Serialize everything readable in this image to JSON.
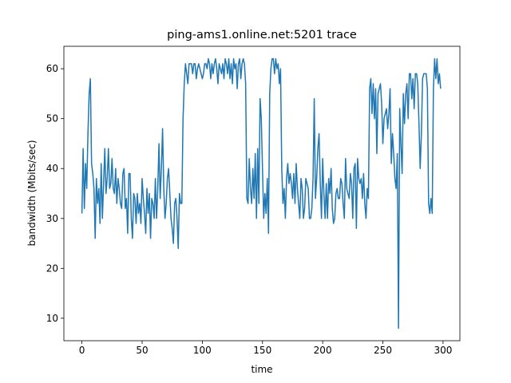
{
  "chart_data": {
    "type": "line",
    "title": "ping-ams1.online.net:5201 trace",
    "x_label": "time",
    "y_label": "bandwidth (Mbits/sec)",
    "x": [
      0,
      1,
      2,
      3,
      4,
      5,
      6,
      7,
      8,
      9,
      10,
      11,
      12,
      13,
      14,
      15,
      16,
      17,
      18,
      19,
      20,
      21,
      22,
      23,
      24,
      25,
      26,
      27,
      28,
      29,
      30,
      31,
      32,
      33,
      34,
      35,
      36,
      37,
      38,
      39,
      40,
      41,
      42,
      43,
      44,
      45,
      46,
      47,
      48,
      49,
      50,
      51,
      52,
      53,
      54,
      55,
      56,
      57,
      58,
      59,
      60,
      61,
      62,
      63,
      64,
      65,
      66,
      67,
      68,
      69,
      70,
      71,
      72,
      73,
      74,
      75,
      76,
      77,
      78,
      79,
      80,
      81,
      82,
      83,
      84,
      85,
      86,
      87,
      88,
      89,
      90,
      91,
      92,
      93,
      94,
      95,
      96,
      97,
      98,
      99,
      100,
      101,
      102,
      103,
      104,
      105,
      106,
      107,
      108,
      109,
      110,
      111,
      112,
      113,
      114,
      115,
      116,
      117,
      118,
      119,
      120,
      121,
      122,
      123,
      124,
      125,
      126,
      127,
      128,
      129,
      130,
      131,
      132,
      133,
      134,
      135,
      136,
      137,
      138,
      139,
      140,
      141,
      142,
      143,
      144,
      145,
      146,
      147,
      148,
      149,
      150,
      151,
      152,
      153,
      154,
      155,
      156,
      157,
      158,
      159,
      160,
      161,
      162,
      163,
      164,
      165,
      166,
      167,
      168,
      169,
      170,
      171,
      172,
      173,
      174,
      175,
      176,
      177,
      178,
      179,
      180,
      181,
      182,
      183,
      184,
      185,
      186,
      187,
      188,
      189,
      190,
      191,
      192,
      193,
      194,
      195,
      196,
      197,
      198,
      199,
      200,
      201,
      202,
      203,
      204,
      205,
      206,
      207,
      208,
      209,
      210,
      211,
      212,
      213,
      214,
      215,
      216,
      217,
      218,
      219,
      220,
      221,
      222,
      223,
      224,
      225,
      226,
      227,
      228,
      229,
      230,
      231,
      232,
      233,
      234,
      235,
      236,
      237,
      238,
      239,
      240,
      241,
      242,
      243,
      244,
      245,
      246,
      247,
      248,
      249,
      250,
      251,
      252,
      253,
      254,
      255,
      256,
      257,
      258,
      259,
      260,
      261,
      262,
      263,
      264,
      265,
      266,
      267,
      268,
      269,
      270,
      271,
      272,
      273,
      274,
      275,
      276,
      277,
      278,
      279,
      280,
      281,
      282,
      283,
      284,
      285,
      286,
      287,
      288,
      289,
      290,
      291,
      292,
      293,
      294,
      295,
      296,
      297,
      298
    ],
    "series": [
      {
        "color": "#1f77b4",
        "values": [
          31,
          44,
          32,
          41,
          36,
          47,
          55,
          58,
          41,
          39,
          36,
          26,
          38,
          33,
          36,
          29,
          41,
          30,
          37,
          44,
          35,
          38,
          44,
          36,
          37,
          42,
          36,
          35,
          40,
          33,
          38,
          36,
          33,
          32,
          39,
          40,
          32,
          34,
          27,
          39,
          39,
          30,
          26,
          35,
          34,
          29,
          35,
          31,
          33,
          29,
          38,
          34,
          31,
          27,
          36,
          31,
          35,
          26,
          34,
          33,
          30,
          38,
          30,
          36,
          45,
          34,
          40,
          48,
          36,
          30,
          33,
          38,
          40,
          35,
          30,
          28,
          25,
          33,
          34,
          30,
          24,
          35,
          33,
          33,
          50,
          57,
          61,
          59,
          57,
          61,
          61,
          61,
          59,
          61,
          61,
          58,
          60,
          61,
          60,
          59,
          58,
          59,
          61,
          61,
          60,
          62,
          61,
          58,
          61,
          59,
          61,
          62,
          60,
          57,
          61,
          60,
          59,
          61,
          58,
          62,
          61,
          59,
          62,
          58,
          61,
          57,
          62,
          60,
          61,
          56,
          61,
          62,
          58,
          61,
          62,
          61,
          57,
          34,
          33,
          42,
          36,
          33,
          40,
          34,
          43,
          30,
          44,
          33,
          54,
          50,
          40,
          30,
          35,
          31,
          38,
          27,
          55,
          60,
          62,
          62,
          59,
          62,
          60,
          61,
          57,
          60,
          40,
          33,
          36,
          30,
          38,
          41,
          37,
          39,
          37,
          34,
          39,
          33,
          41,
          36,
          33,
          30,
          38,
          36,
          30,
          32,
          38,
          37,
          36,
          30,
          30,
          32,
          38,
          54,
          34,
          38,
          44,
          47,
          37,
          30,
          42,
          35,
          30,
          37,
          30,
          38,
          35,
          40,
          32,
          29,
          30,
          35,
          36,
          34,
          34,
          38,
          37,
          33,
          30,
          42,
          36,
          35,
          34,
          39,
          37,
          30,
          40,
          41,
          28,
          42,
          38,
          37,
          38,
          34,
          39,
          33,
          30,
          36,
          34,
          56,
          58,
          51,
          57,
          50,
          56,
          43,
          55,
          56,
          57,
          53,
          45,
          50,
          51,
          52,
          48,
          51,
          56,
          41,
          47,
          43,
          38,
          36,
          43,
          8,
          52,
          45,
          39,
          55,
          49,
          55,
          57,
          50,
          59,
          59,
          54,
          58,
          52,
          59,
          59,
          57,
          49,
          40,
          47,
          58,
          59,
          59,
          59,
          56,
          33,
          31,
          34,
          31,
          56,
          62,
          58,
          62,
          57,
          59,
          56
        ]
      }
    ],
    "xlim": [
      -15,
      314
    ],
    "ylim": [
      5.5,
      64.5
    ],
    "xticks": [
      0,
      50,
      100,
      150,
      200,
      250,
      300
    ],
    "yticks": [
      10,
      20,
      30,
      40,
      50,
      60
    ]
  }
}
